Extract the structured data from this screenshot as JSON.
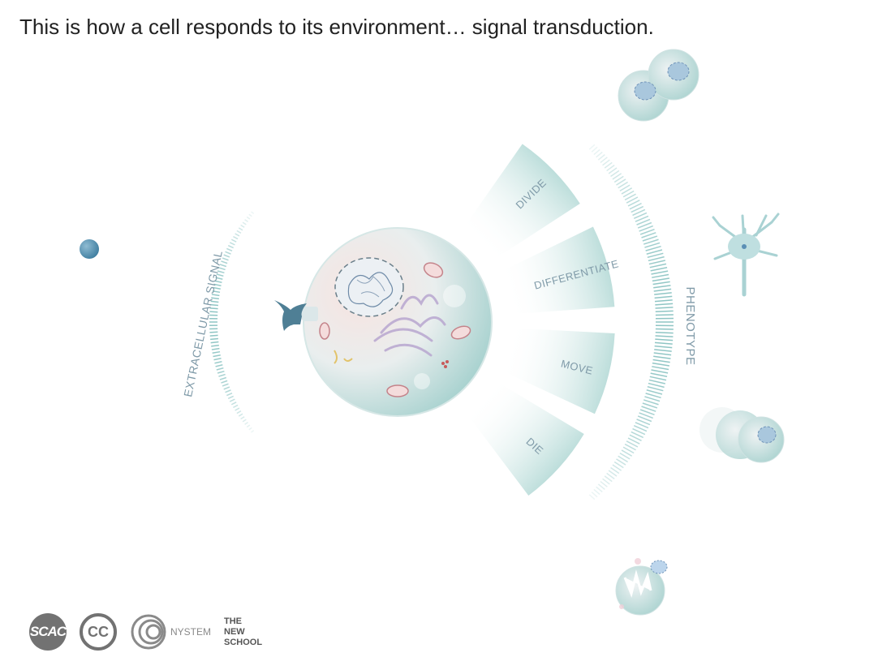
{
  "header": {
    "title": "This is how a cell responds to its environment… signal transduction."
  },
  "diagram": {
    "signal_label": "EXTRACELLULAR SIGNAL",
    "phenotype_label": "PHENOTYPE",
    "outcomes": [
      {
        "label": "DIVIDE"
      },
      {
        "label": "DIFFERENTIATE"
      },
      {
        "label": "MOVE"
      },
      {
        "label": "DIE"
      }
    ]
  },
  "footer": {
    "scac": "SCAC",
    "cc": "CC",
    "nystem": "NYSTEM",
    "new_school": [
      "THE",
      "NEW",
      "SCHOOL"
    ]
  },
  "colors": {
    "teal": "#8ec5c4",
    "slate": "#7f9aa8",
    "receptor": "#4f7f95",
    "signal": "#4f8fb3"
  }
}
